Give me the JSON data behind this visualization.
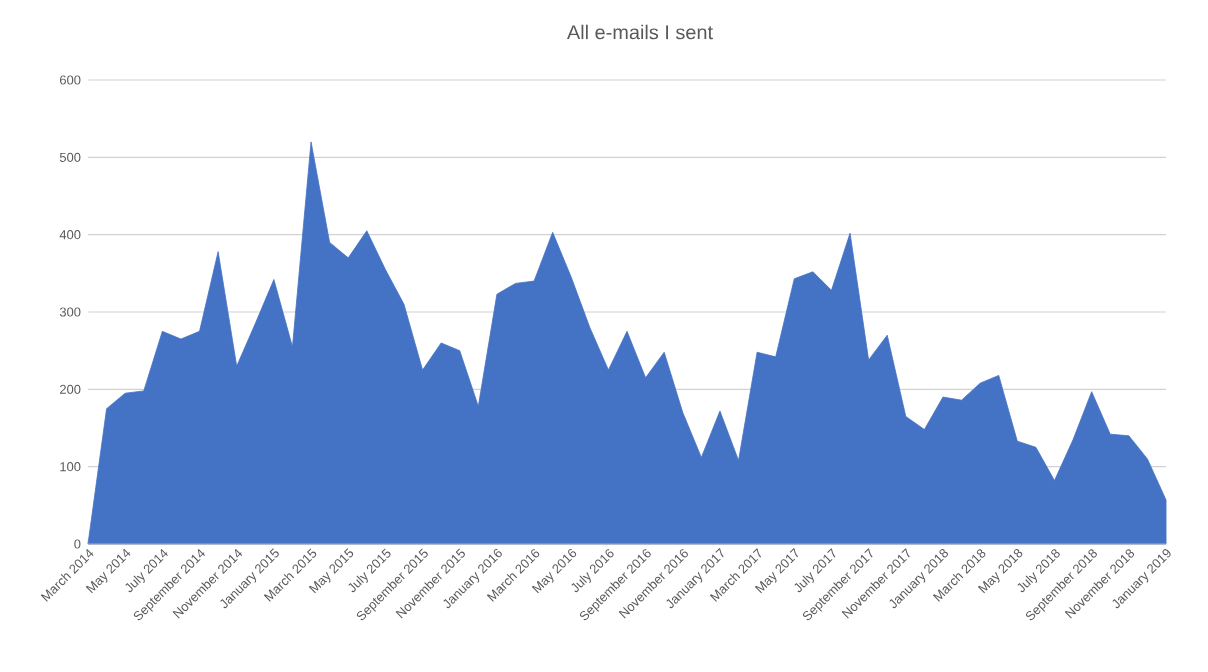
{
  "chart_data": {
    "type": "area",
    "title": "All e-mails I sent",
    "categories": [
      "March 2014",
      null,
      "May 2014",
      null,
      "July 2014",
      null,
      "September 2014",
      null,
      "November 2014",
      null,
      "January 2015",
      null,
      "March 2015",
      null,
      "May 2015",
      null,
      "July 2015",
      null,
      "September 2015",
      null,
      "November 2015",
      null,
      "January 2016",
      null,
      "March 2016",
      null,
      "May 2016",
      null,
      "July 2016",
      null,
      "September 2016",
      null,
      "November 2016",
      null,
      "January 2017",
      null,
      "March 2017",
      null,
      "May 2017",
      null,
      "July 2017",
      null,
      "September 2017",
      null,
      "November 2017",
      null,
      "January 2018",
      null,
      "March 2018",
      null,
      "May 2018",
      null,
      "July 2018",
      null,
      "September 2018",
      null,
      "November 2018",
      null,
      "January 2019"
    ],
    "values": [
      0,
      175,
      195,
      198,
      275,
      265,
      275,
      378,
      230,
      285,
      342,
      255,
      520,
      390,
      370,
      405,
      355,
      310,
      225,
      260,
      250,
      178,
      323,
      337,
      340,
      403,
      345,
      280,
      225,
      275,
      215,
      248,
      170,
      112,
      172,
      108,
      248,
      242,
      343,
      352,
      328,
      402,
      238,
      270,
      165,
      148,
      190,
      186,
      208,
      218,
      133,
      125,
      82,
      135,
      197,
      142,
      140,
      110,
      57
    ],
    "color": "#4472c4",
    "ylim": [
      0,
      600
    ],
    "yticks": [
      0,
      100,
      200,
      300,
      400,
      500,
      600
    ],
    "grid": "y"
  }
}
